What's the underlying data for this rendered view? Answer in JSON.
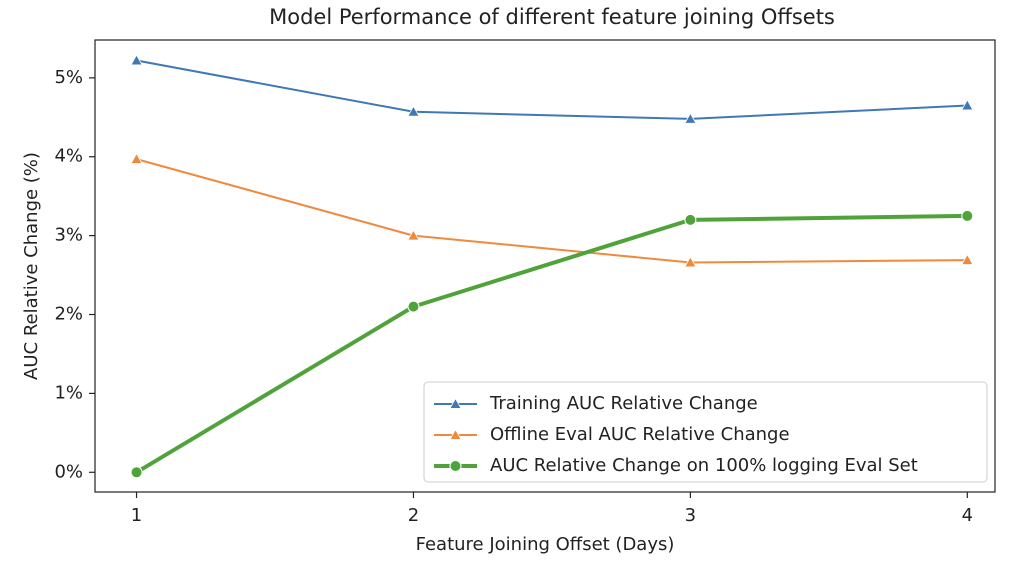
{
  "chart_data": {
    "type": "line",
    "title": "Model Performance of different feature joining Offsets",
    "x_label": "Feature Joining Offset (Days)",
    "y_label": "AUC Relative Change (%)",
    "x": [
      1,
      2,
      3,
      4
    ],
    "series": [
      {
        "name": "Training AUC Relative Change",
        "color": "#3f78b5",
        "marker": "^",
        "linewidth": 2,
        "values": [
          5.22,
          4.57,
          4.48,
          4.65
        ]
      },
      {
        "name": "Offline Eval AUC Relative Change",
        "color": "#ef8a3d",
        "marker": "^",
        "linewidth": 2,
        "values": [
          3.97,
          3.0,
          2.66,
          2.69
        ]
      },
      {
        "name": "AUC Relative Change on 100% logging Eval Set",
        "color": "#50a33a",
        "marker": "o",
        "linewidth": 4,
        "values": [
          0,
          2.1,
          3.2,
          3.25
        ]
      }
    ],
    "xlim": [
      0.85,
      4.1
    ],
    "xticks": [
      1,
      2,
      3,
      4
    ],
    "ylim": [
      -0.25,
      5.48
    ],
    "yticks": [
      {
        "value": 0,
        "label": "0%"
      },
      {
        "value": 1,
        "label": "1%"
      },
      {
        "value": 2,
        "label": "2%"
      },
      {
        "value": 3,
        "label": "3%"
      },
      {
        "value": 4,
        "label": "4%"
      },
      {
        "value": 5,
        "label": "5%"
      }
    ],
    "legend": "lower right",
    "grid": false
  }
}
